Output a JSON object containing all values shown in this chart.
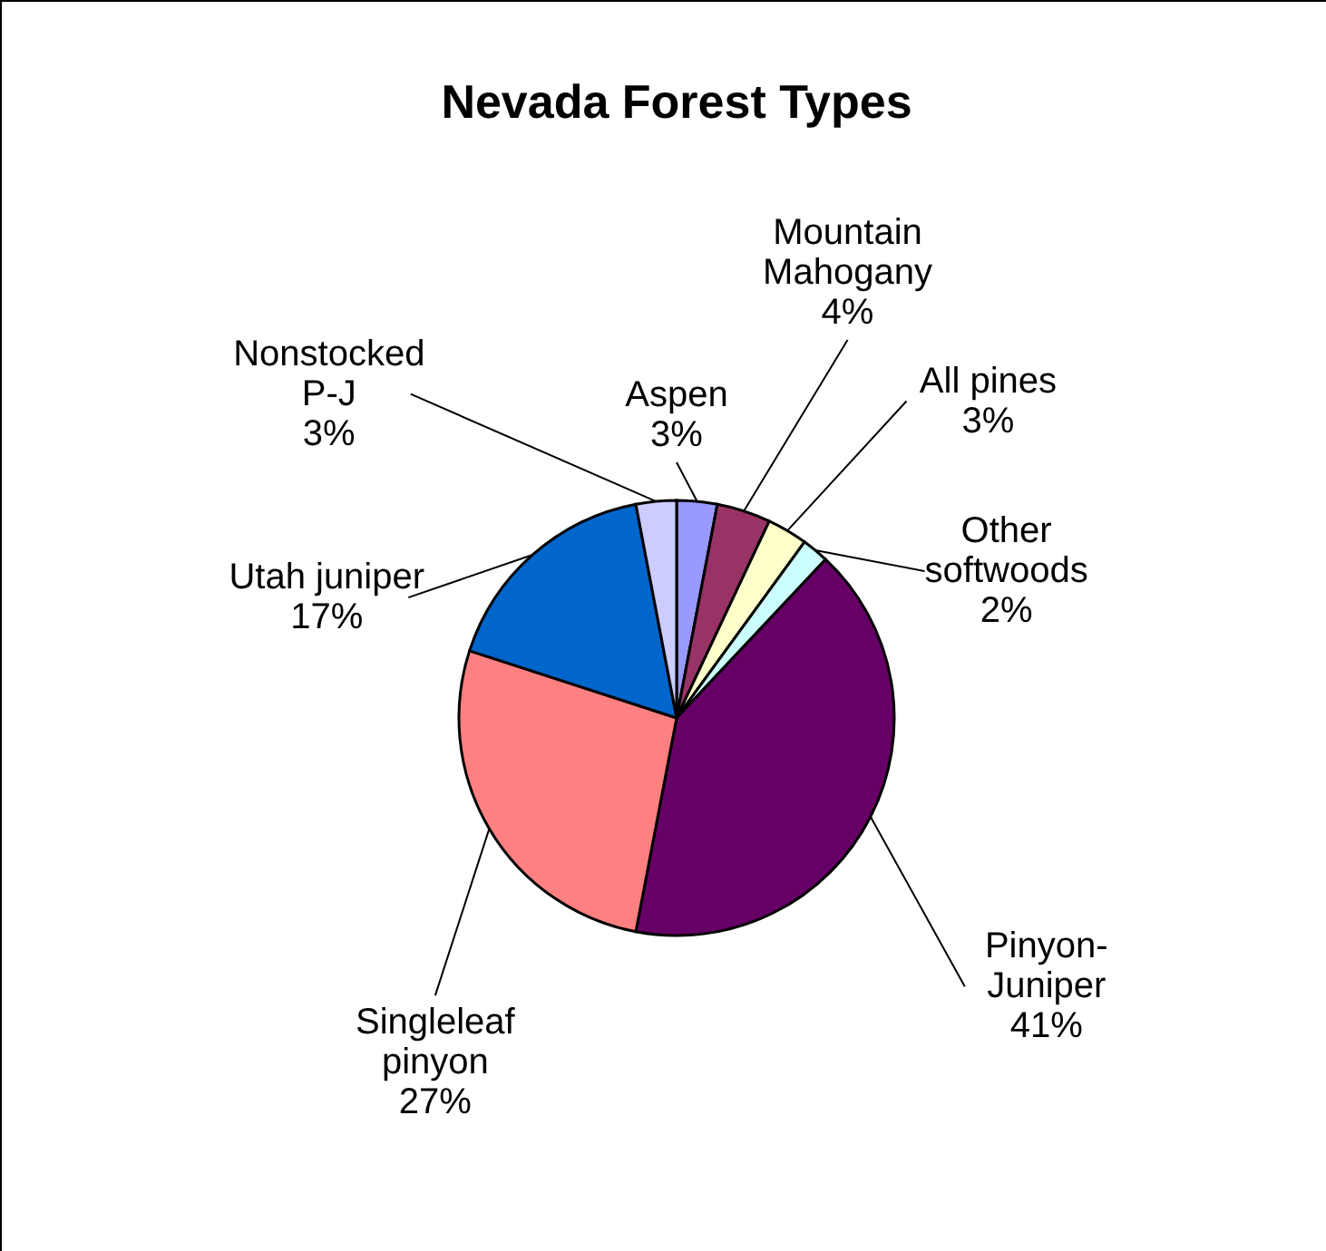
{
  "chart_data": {
    "type": "pie",
    "title": "Nevada Forest Types",
    "categories": [
      "Aspen",
      "Mountain\nMahogany",
      "All pines",
      "Other\nsoftwoods",
      "Pinyon-\nJuniper",
      "Singleleaf\npinyon",
      "Utah juniper",
      "Nonstocked\nP-J"
    ],
    "values": [
      3,
      4,
      3,
      2,
      41,
      27,
      17,
      3
    ],
    "value_labels": [
      "3%",
      "4%",
      "3%",
      "2%",
      "41%",
      "27%",
      "17%",
      "3%"
    ],
    "colors": [
      "#9999ff",
      "#993366",
      "#ffffcc",
      "#ccffff",
      "#660066",
      "#ff8080",
      "#0066cc",
      "#ccccff"
    ]
  }
}
